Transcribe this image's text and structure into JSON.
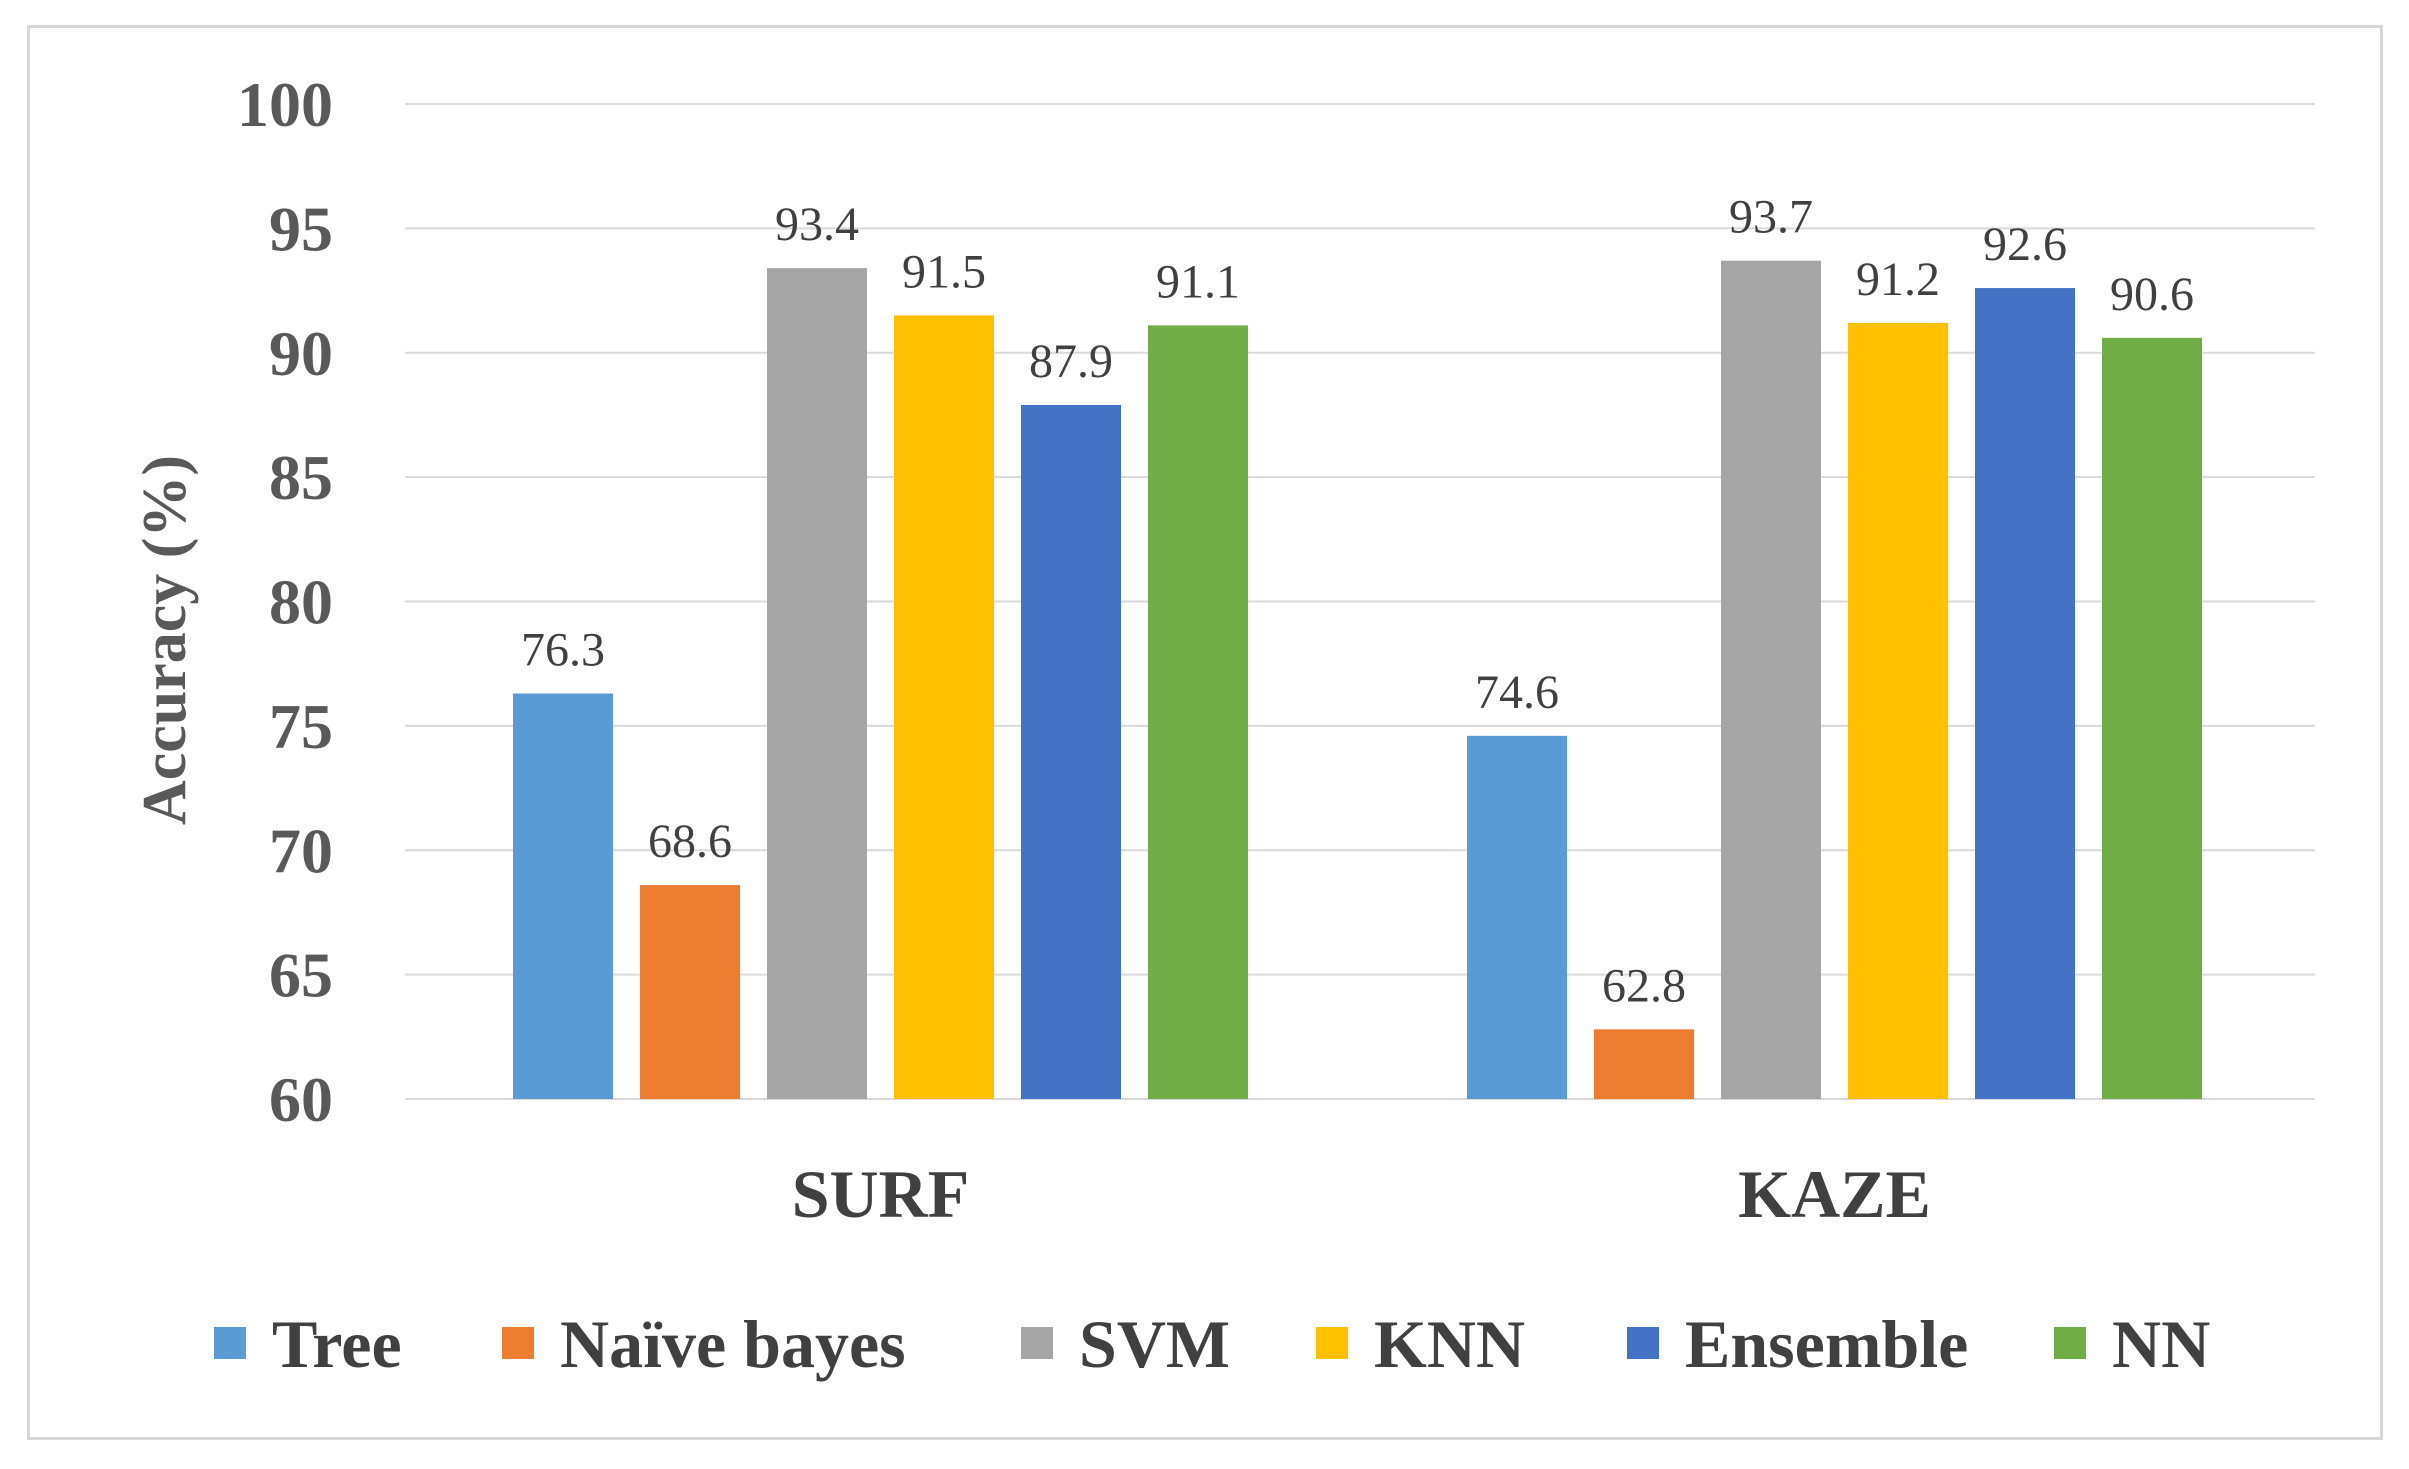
{
  "chart_data": {
    "type": "bar",
    "title": "",
    "xlabel": "",
    "ylabel": "Accuracy (%)",
    "ylim": [
      60,
      100
    ],
    "yticks": [
      60,
      65,
      70,
      75,
      80,
      85,
      90,
      95,
      100
    ],
    "grid": true,
    "legend_position": "bottom",
    "categories": [
      "SURF",
      "KAZE"
    ],
    "series": [
      {
        "name": "Tree",
        "color": "#5b9bd5",
        "values": [
          76.3,
          74.6
        ],
        "labels": [
          "76.3",
          "74.6"
        ]
      },
      {
        "name": "Naïve bayes",
        "color": "#ed7d31",
        "values": [
          68.6,
          62.8
        ],
        "labels": [
          "68.6",
          "62.8"
        ]
      },
      {
        "name": "SVM",
        "color": "#a5a5a5",
        "values": [
          93.4,
          93.7
        ],
        "labels": [
          "93.4",
          "93.7"
        ]
      },
      {
        "name": "KNN",
        "color": "#ffc000",
        "values": [
          91.5,
          91.2
        ],
        "labels": [
          "91.5",
          "91.2"
        ]
      },
      {
        "name": "Ensemble",
        "color": "#4472c4",
        "values": [
          87.9,
          92.6
        ],
        "labels": [
          "87.9",
          "92.6"
        ]
      },
      {
        "name": "NN",
        "color": "#70ad47",
        "values": [
          91.1,
          90.6
        ],
        "labels": [
          "91.1",
          "90.6"
        ]
      }
    ]
  }
}
